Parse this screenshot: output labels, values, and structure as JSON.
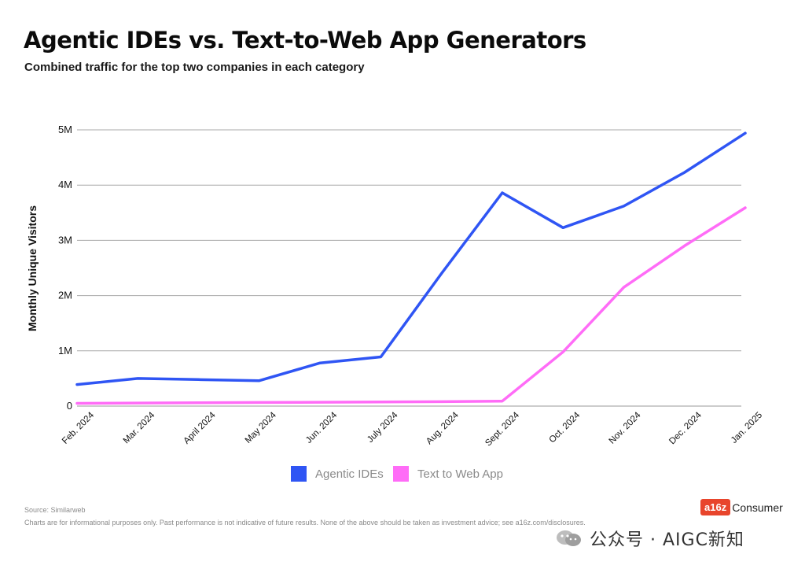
{
  "header": {
    "title": "Agentic IDEs vs. Text-to-Web App Generators",
    "subtitle": "Combined traffic for the top two companies in each category"
  },
  "chart_data": {
    "type": "line",
    "ylabel": "Monthly Unique Visitors",
    "ylim": [
      0,
      5000000
    ],
    "yticks": [
      0,
      1000000,
      2000000,
      3000000,
      4000000,
      5000000
    ],
    "ytick_labels": [
      "0",
      "1M",
      "2M",
      "3M",
      "4M",
      "5M"
    ],
    "x": [
      "Feb. 2024",
      "Mar. 2024",
      "April 2024",
      "May 2024",
      "Jun. 2024",
      "July 2024",
      "Aug. 2024",
      "Sept. 2024",
      "Oct. 2024",
      "Nov. 2024",
      "Dec. 2024",
      "Jan. 2025"
    ],
    "grid": true,
    "legend_position": "bottom-center",
    "series": [
      {
        "name": "Agentic IDEs",
        "color": "#2f55f4",
        "values": [
          390000,
          500000,
          480000,
          460000,
          780000,
          890000,
          2400000,
          3860000,
          3230000,
          3620000,
          4230000,
          4940000
        ]
      },
      {
        "name": "Text to Web App",
        "color": "#ff6cf7",
        "values": [
          50000,
          55000,
          60000,
          65000,
          70000,
          75000,
          80000,
          90000,
          980000,
          2150000,
          2900000,
          3590000
        ]
      }
    ]
  },
  "footer": {
    "source": "Source: Similarweb",
    "disclaimer": "Charts are for informational purposes only. Past performance is not indicative of future results. None of the above should be taken as investment advice; see a16z.com/disclosures."
  },
  "brand": {
    "logo": "a16z",
    "label": "Consumer"
  },
  "watermark": {
    "icon": "wechat-icon",
    "text": "公众号 · AIGC新知"
  }
}
